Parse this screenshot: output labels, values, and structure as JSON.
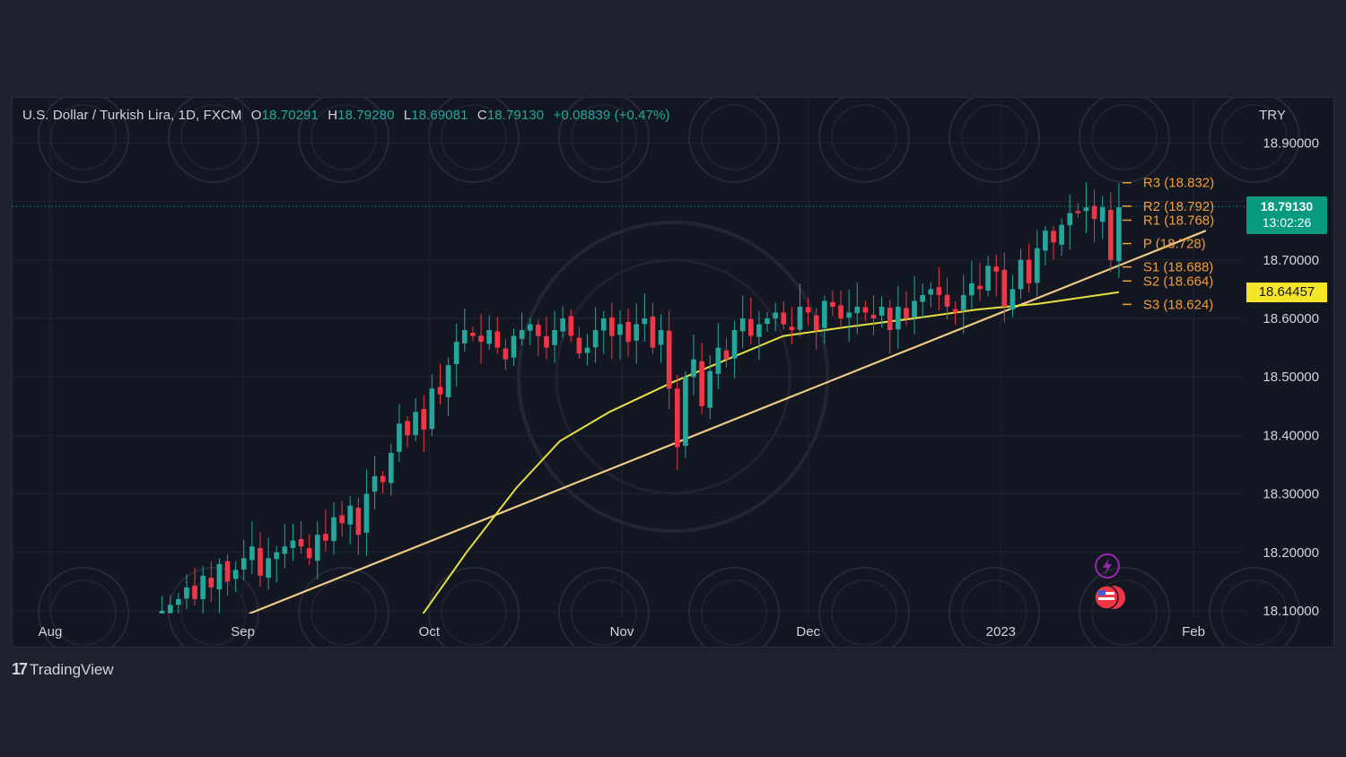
{
  "legend": {
    "symbol": "U.S. Dollar / Turkish Lira, 1D, FXCM",
    "open_label": "O",
    "open": "18.70291",
    "high_label": "H",
    "high": "18.79280",
    "low_label": "L",
    "low": "18.69081",
    "close_label": "C",
    "close": "18.79130",
    "change": "+0.08839 (+0.47%)"
  },
  "currency": "TRY",
  "last_price": {
    "value": "18.79130",
    "countdown": "13:02:26",
    "color": "#089981"
  },
  "ma_price": {
    "value": "18.64457",
    "color": "#f5e52a"
  },
  "logo": {
    "mark": "17",
    "text": "TradingView"
  },
  "colors": {
    "up": "#26a69a",
    "down": "#f23645",
    "ma": "#e6e040",
    "trend": "#f0c987",
    "pivot": "#f29d38",
    "background": "#131722"
  },
  "chart_data": {
    "type": "candlestick",
    "title": "U.S. Dollar / Turkish Lira, 1D, FXCM",
    "ylim": [
      18.09,
      18.97
    ],
    "y_ticks": [
      18.1,
      18.2,
      18.3,
      18.4,
      18.5,
      18.6,
      18.7,
      18.8,
      18.9
    ],
    "y_tick_labels": [
      "18.10000",
      "18.20000",
      "18.30000",
      "18.40000",
      "18.50000",
      "18.60000",
      "18.70000",
      "18.80000",
      "18.90000"
    ],
    "x_ticks": [
      {
        "label": "Aug",
        "date": "2022-08-01"
      },
      {
        "label": "Sep",
        "date": "2022-09-01"
      },
      {
        "label": "Oct",
        "date": "2022-10-01"
      },
      {
        "label": "Nov",
        "date": "2022-11-01"
      },
      {
        "label": "Dec",
        "date": "2022-12-01"
      },
      {
        "label": "2023",
        "date": "2023-01-01"
      },
      {
        "label": "Feb",
        "date": "2023-02-01"
      }
    ],
    "first_date": "2022-08-19",
    "last_date": "2023-01-20",
    "x_range": [
      "2022-07-31",
      "2023-02-11"
    ],
    "pivots": [
      {
        "name": "R3",
        "value": 18.832,
        "label": "R3 (18.832)"
      },
      {
        "name": "R2",
        "value": 18.792,
        "label": "R2 (18.792)"
      },
      {
        "name": "R1",
        "value": 18.768,
        "label": "R1 (18.768)"
      },
      {
        "name": "P",
        "value": 18.728,
        "label": "P (18.728)"
      },
      {
        "name": "S1",
        "value": 18.688,
        "label": "S1 (18.688)"
      },
      {
        "name": "S2",
        "value": 18.664,
        "label": "S2 (18.664)"
      },
      {
        "name": "S3",
        "value": 18.624,
        "label": "S3 (18.624)"
      }
    ],
    "trend_line": {
      "start": {
        "date": "2022-09-02",
        "value": 18.095
      },
      "end": {
        "date": "2023-02-03",
        "value": 18.75
      }
    },
    "moving_average": [
      {
        "date": "2022-09-30",
        "value": 18.095
      },
      {
        "date": "2022-10-07",
        "value": 18.2
      },
      {
        "date": "2022-10-15",
        "value": 18.31
      },
      {
        "date": "2022-10-22",
        "value": 18.39
      },
      {
        "date": "2022-10-30",
        "value": 18.44
      },
      {
        "date": "2022-11-09",
        "value": 18.49
      },
      {
        "date": "2022-11-18",
        "value": 18.53
      },
      {
        "date": "2022-11-27",
        "value": 18.57
      },
      {
        "date": "2022-12-07",
        "value": 18.585
      },
      {
        "date": "2022-12-18",
        "value": 18.6
      },
      {
        "date": "2022-12-28",
        "value": 18.615
      },
      {
        "date": "2023-01-07",
        "value": 18.625
      },
      {
        "date": "2023-01-20",
        "value": 18.645
      }
    ],
    "closes": [
      18.1,
      18.11,
      18.12,
      18.14,
      18.12,
      18.16,
      18.14,
      18.18,
      18.15,
      18.17,
      18.19,
      18.21,
      18.16,
      18.19,
      18.2,
      18.21,
      18.22,
      18.21,
      18.19,
      18.23,
      18.22,
      18.26,
      18.25,
      18.28,
      18.23,
      18.3,
      18.33,
      18.32,
      18.37,
      18.42,
      18.4,
      18.44,
      18.41,
      18.48,
      18.47,
      18.52,
      18.56,
      18.58,
      18.57,
      18.56,
      18.58,
      18.55,
      18.53,
      18.57,
      18.58,
      18.59,
      18.57,
      18.55,
      18.58,
      18.6,
      18.57,
      18.54,
      18.55,
      18.58,
      18.6,
      18.57,
      18.59,
      18.56,
      18.59,
      18.6,
      18.55,
      18.58,
      18.48,
      18.38,
      18.5,
      18.53,
      18.45,
      18.51,
      18.55,
      18.53,
      18.58,
      18.6,
      18.57,
      18.59,
      18.6,
      18.61,
      18.59,
      18.58,
      18.62,
      18.61,
      18.58,
      18.63,
      18.62,
      18.6,
      18.61,
      18.62,
      18.61,
      18.6,
      18.62,
      18.58,
      18.62,
      18.6,
      18.63,
      18.64,
      18.65,
      18.64,
      18.62,
      18.61,
      18.64,
      18.66,
      18.65,
      18.69,
      18.68,
      18.62,
      18.65,
      18.7,
      18.66,
      18.72,
      18.75,
      18.73,
      18.76,
      18.78,
      18.78,
      18.79,
      18.77,
      18.79,
      18.7,
      18.79
    ]
  }
}
